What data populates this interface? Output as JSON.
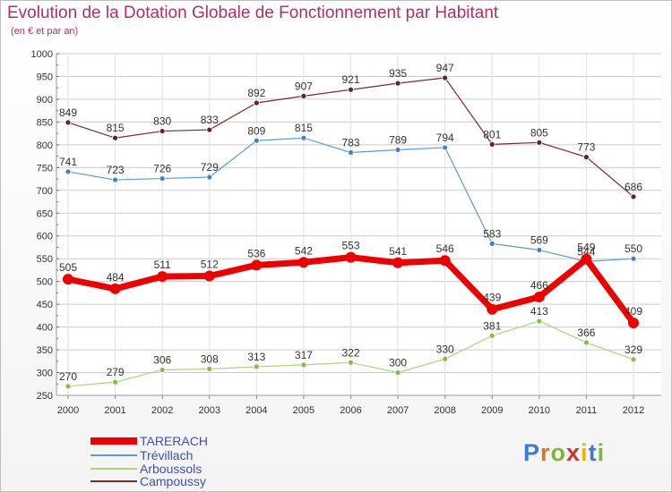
{
  "header": {
    "title": "Evolution de la Dotation Globale de Fonctionnement par Habitant",
    "subtitle": "(en € et par an)"
  },
  "colors": {
    "title": "#b0306a",
    "grid": "#cccccc",
    "axis_text": "#333333",
    "legend_text": "#3b4fc4"
  },
  "logo": {
    "text": "Proxiti",
    "letters": [
      "P",
      "r",
      "o",
      "x",
      "i",
      "t",
      "i"
    ],
    "letter_colors": [
      "#3a7bd5",
      "#e0702a",
      "#79b83a",
      "#d4332b",
      "#f0b400",
      "#3a7bd5",
      "#79b83a"
    ]
  },
  "chart_data": {
    "type": "line",
    "x": [
      "2000",
      "2001",
      "2002",
      "2003",
      "2004",
      "2005",
      "2006",
      "2007",
      "2008",
      "2009",
      "2010",
      "2011",
      "2012"
    ],
    "ylim": [
      250,
      1000
    ],
    "yticks": [
      250,
      300,
      350,
      400,
      450,
      500,
      550,
      600,
      650,
      700,
      750,
      800,
      850,
      900,
      950,
      1000
    ],
    "grid": true,
    "legend_position": "bottom-left",
    "series": [
      {
        "name": "Campoussy",
        "color": "#7a2b2b",
        "marker_color": "#6b1f1f",
        "width": 1.2,
        "marker_r": 3,
        "values": [
          849,
          815,
          830,
          833,
          892,
          907,
          921,
          935,
          947,
          801,
          805,
          773,
          686
        ],
        "labels": [
          "849",
          "815",
          "830",
          "833",
          "892",
          "907",
          "921",
          "935",
          "947",
          "801",
          "805",
          "773",
          "686"
        ]
      },
      {
        "name": "Trévillach",
        "color": "#5b9bd5",
        "marker_color": "#3d85c6",
        "width": 1.2,
        "marker_r": 3,
        "values": [
          741,
          723,
          726,
          729,
          809,
          815,
          783,
          789,
          794,
          583,
          569,
          544,
          550
        ],
        "labels": [
          "741",
          "723",
          "726",
          "729",
          "809",
          "815",
          "783",
          "789",
          "794",
          "583",
          "569",
          "544",
          "550"
        ]
      },
      {
        "name": "Arboussols",
        "color": "#a3d977",
        "marker_color": "#7fc241",
        "width": 1.2,
        "marker_r": 3,
        "values": [
          270,
          279,
          306,
          308,
          313,
          317,
          322,
          300,
          330,
          381,
          413,
          366,
          329
        ],
        "labels": [
          "270",
          "279",
          "306",
          "308",
          "313",
          "317",
          "322",
          "300",
          "330",
          "381",
          "413",
          "366",
          "329"
        ]
      },
      {
        "name": "TARERACH",
        "color": "#ee0000",
        "marker_color": "#ee0000",
        "width": 7,
        "marker_r": 6,
        "values": [
          505,
          484,
          511,
          512,
          536,
          542,
          553,
          541,
          546,
          439,
          466,
          549,
          409
        ],
        "labels": [
          "505",
          "484",
          "511",
          "512",
          "536",
          "542",
          "553",
          "541",
          "546",
          "439",
          "466",
          "549",
          "409"
        ]
      }
    ],
    "legend": [
      {
        "name": "TARERACH",
        "color": "#ee0000",
        "thickness": 8
      },
      {
        "name": "Trévillach",
        "color": "#5b9bd5",
        "thickness": 2
      },
      {
        "name": "Arboussols",
        "color": "#a3d977",
        "thickness": 2
      },
      {
        "name": "Campoussy",
        "color": "#7a2b2b",
        "thickness": 2
      }
    ]
  }
}
